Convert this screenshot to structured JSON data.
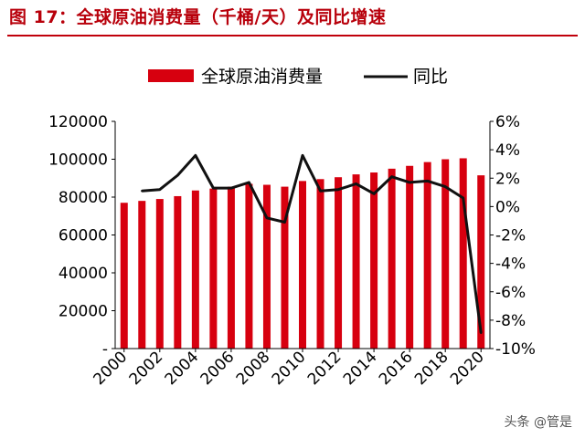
{
  "figure": {
    "title": "图 17：全球原油消费量（千桶/天）及同比增速",
    "watermark": "头条 @管是"
  },
  "colors": {
    "bar": "#d7000f",
    "line": "#111111",
    "title": "#b8000b"
  },
  "chart_data": {
    "type": "bar",
    "title": "",
    "xlabel": "",
    "ylabel": "",
    "legend_position": "top",
    "grid": false,
    "categories": [
      "2000",
      "2001",
      "2002",
      "2003",
      "2004",
      "2005",
      "2006",
      "2007",
      "2008",
      "2009",
      "2010",
      "2011",
      "2012",
      "2013",
      "2014",
      "2015",
      "2016",
      "2017",
      "2018",
      "2019",
      "2020"
    ],
    "x_tick_labels": [
      "2000",
      "2002",
      "2004",
      "2006",
      "2008",
      "2010",
      "2012",
      "2014",
      "2016",
      "2018",
      "2020"
    ],
    "series": [
      {
        "name": "全球原油消费量",
        "type": "bar",
        "axis": "left",
        "values": [
          77000,
          78000,
          79000,
          80500,
          83500,
          84500,
          85500,
          87000,
          86500,
          85500,
          88500,
          89500,
          90500,
          92000,
          93000,
          95000,
          96500,
          98500,
          100000,
          100500,
          91500
        ]
      },
      {
        "name": "同比",
        "type": "line",
        "axis": "right",
        "values": [
          null,
          1.1,
          1.2,
          2.2,
          3.6,
          1.3,
          1.3,
          1.7,
          -0.8,
          -1.1,
          3.6,
          1.1,
          1.2,
          1.6,
          0.9,
          2.1,
          1.7,
          1.8,
          1.4,
          0.6,
          -8.9
        ]
      }
    ],
    "y_left": {
      "min": 0,
      "max": 120000,
      "ticks": [
        "-",
        "20000",
        "40000",
        "60000",
        "80000",
        "100000",
        "120000"
      ]
    },
    "y_right": {
      "min": -10,
      "max": 6,
      "ticks": [
        "-10%",
        "-8%",
        "-6%",
        "-4%",
        "-2%",
        "0%",
        "2%",
        "4%",
        "6%"
      ]
    }
  }
}
